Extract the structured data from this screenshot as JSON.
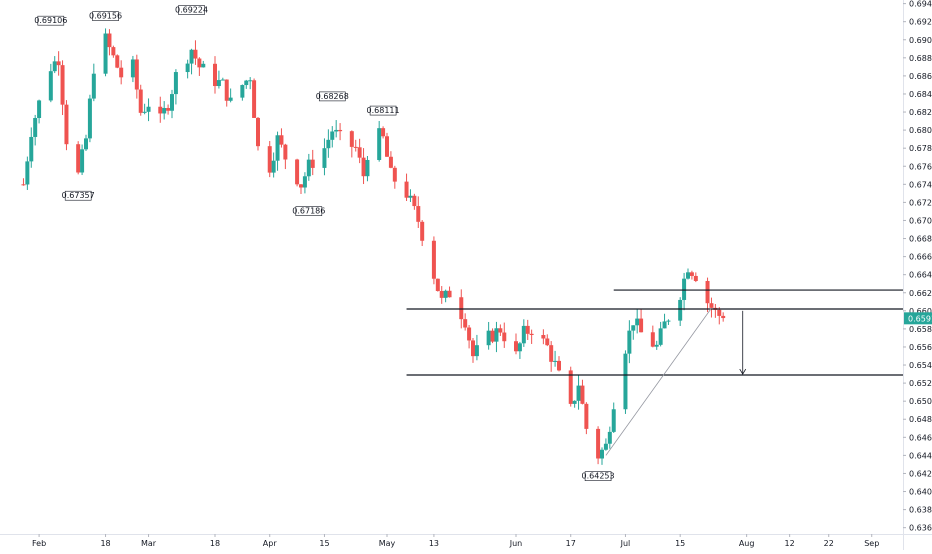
{
  "chart_data": {
    "type": "candlestick",
    "title": "",
    "xlabel": "",
    "ylabel": "",
    "ylim": [
      0.6353,
      0.6944
    ],
    "grid": false,
    "y_ticks": [
      "0.69400",
      "0.69200",
      "0.69000",
      "0.68800",
      "0.68600",
      "0.68400",
      "0.68200",
      "0.68000",
      "0.67800",
      "0.67600",
      "0.67400",
      "0.67200",
      "0.67000",
      "0.66800",
      "0.66600",
      "0.66400",
      "0.66200",
      "0.66000",
      "0.65800",
      "0.65600",
      "0.65400",
      "0.65200",
      "0.65000",
      "0.64800",
      "0.64600",
      "0.64400",
      "0.64200",
      "0.64000",
      "0.63800",
      "0.63600"
    ],
    "x_ticks": [
      {
        "label": "Feb",
        "date": "2019-02-01"
      },
      {
        "label": "18",
        "date": "2019-02-18"
      },
      {
        "label": "Mar",
        "date": "2019-03-01"
      },
      {
        "label": "18",
        "date": "2019-03-18"
      },
      {
        "label": "Apr",
        "date": "2019-04-01"
      },
      {
        "label": "15",
        "date": "2019-04-15"
      },
      {
        "label": "May",
        "date": "2019-05-01"
      },
      {
        "label": "13",
        "date": "2019-05-13"
      },
      {
        "label": "Jun",
        "date": "2019-06-03"
      },
      {
        "label": "17",
        "date": "2019-06-17"
      },
      {
        "label": "Jul",
        "date": "2019-07-01"
      },
      {
        "label": "15",
        "date": "2019-07-15"
      },
      {
        "label": "Aug",
        "date": "2019-08-01"
      },
      {
        "label": "12",
        "date": "2019-08-12"
      },
      {
        "label": "22",
        "date": "2019-08-22"
      },
      {
        "label": "Sep",
        "date": "2019-09-02"
      }
    ],
    "colors": {
      "up": "#26a69a",
      "down": "#ef5350",
      "level": "#131722",
      "price_tag": "#26a69a",
      "trend": "#9598a1"
    },
    "current_price": "0.65917",
    "candles_keypoints": [
      {
        "date": "2019-01-28",
        "value": 0.674
      },
      {
        "date": "2019-01-30",
        "value": 0.68
      },
      {
        "date": "2019-02-01",
        "value": 0.683
      },
      {
        "date": "2019-02-04",
        "value": 0.687
      },
      {
        "date": "2019-02-06",
        "value": 0.688
      },
      {
        "date": "2019-02-08",
        "value": 0.679
      },
      {
        "date": "2019-02-11",
        "value": 0.675
      },
      {
        "date": "2019-02-13",
        "value": 0.679
      },
      {
        "date": "2019-02-15",
        "value": 0.687
      },
      {
        "date": "2019-02-18",
        "value": 0.69
      },
      {
        "date": "2019-02-20",
        "value": 0.688
      },
      {
        "date": "2019-02-22",
        "value": 0.686
      },
      {
        "date": "2019-02-25",
        "value": 0.687
      },
      {
        "date": "2019-02-27",
        "value": 0.682
      },
      {
        "date": "2019-03-01",
        "value": 0.683
      },
      {
        "date": "2019-03-04",
        "value": 0.681
      },
      {
        "date": "2019-03-06",
        "value": 0.683
      },
      {
        "date": "2019-03-08",
        "value": 0.686
      },
      {
        "date": "2019-03-12",
        "value": 0.689
      },
      {
        "date": "2019-03-14",
        "value": 0.687
      },
      {
        "date": "2019-03-18",
        "value": 0.6855
      },
      {
        "date": "2019-03-20",
        "value": 0.685
      },
      {
        "date": "2019-03-22",
        "value": 0.683
      },
      {
        "date": "2019-03-25",
        "value": 0.685
      },
      {
        "date": "2019-03-27",
        "value": 0.686
      },
      {
        "date": "2019-03-29",
        "value": 0.678
      },
      {
        "date": "2019-04-01",
        "value": 0.676
      },
      {
        "date": "2019-04-03",
        "value": 0.679
      },
      {
        "date": "2019-04-05",
        "value": 0.677
      },
      {
        "date": "2019-04-09",
        "value": 0.674
      },
      {
        "date": "2019-04-11",
        "value": 0.676
      },
      {
        "date": "2019-04-15",
        "value": 0.678
      },
      {
        "date": "2019-04-17",
        "value": 0.68
      },
      {
        "date": "2019-04-19",
        "value": 0.679
      },
      {
        "date": "2019-04-23",
        "value": 0.678
      },
      {
        "date": "2019-04-25",
        "value": 0.675
      },
      {
        "date": "2019-04-27",
        "value": 0.68
      },
      {
        "date": "2019-04-30",
        "value": 0.679
      },
      {
        "date": "2019-05-02",
        "value": 0.675
      },
      {
        "date": "2019-05-06",
        "value": 0.673
      },
      {
        "date": "2019-05-09",
        "value": 0.67
      },
      {
        "date": "2019-05-13",
        "value": 0.664
      },
      {
        "date": "2019-05-15",
        "value": 0.661
      },
      {
        "date": "2019-05-17",
        "value": 0.662
      },
      {
        "date": "2019-05-21",
        "value": 0.659
      },
      {
        "date": "2019-05-23",
        "value": 0.655
      },
      {
        "date": "2019-05-27",
        "value": 0.657
      },
      {
        "date": "2019-05-30",
        "value": 0.658
      },
      {
        "date": "2019-06-03",
        "value": 0.655
      },
      {
        "date": "2019-06-05",
        "value": 0.6575
      },
      {
        "date": "2019-06-07",
        "value": 0.658
      },
      {
        "date": "2019-06-11",
        "value": 0.656
      },
      {
        "date": "2019-06-13",
        "value": 0.654
      },
      {
        "date": "2019-06-17",
        "value": 0.649
      },
      {
        "date": "2019-06-19",
        "value": 0.652
      },
      {
        "date": "2019-06-21",
        "value": 0.647
      },
      {
        "date": "2019-06-24",
        "value": 0.644
      },
      {
        "date": "2019-06-26",
        "value": 0.645
      },
      {
        "date": "2019-06-28",
        "value": 0.65
      },
      {
        "date": "2019-07-01",
        "value": 0.656
      },
      {
        "date": "2019-07-03",
        "value": 0.659
      },
      {
        "date": "2019-07-05",
        "value": 0.6575
      },
      {
        "date": "2019-07-09",
        "value": 0.656
      },
      {
        "date": "2019-07-11",
        "value": 0.6585
      },
      {
        "date": "2019-07-15",
        "value": 0.662
      },
      {
        "date": "2019-07-17",
        "value": 0.665
      },
      {
        "date": "2019-07-19",
        "value": 0.664
      },
      {
        "date": "2019-07-22",
        "value": 0.661
      },
      {
        "date": "2019-07-24",
        "value": 0.6598
      },
      {
        "date": "2019-07-26",
        "value": 0.6592
      }
    ],
    "annotations": [
      {
        "label": "0.69106",
        "date": "2019-02-04",
        "value": 0.69106
      },
      {
        "label": "0.69156",
        "date": "2019-02-18",
        "value": 0.69156
      },
      {
        "label": "0.69224",
        "date": "2019-03-12",
        "value": 0.69224
      },
      {
        "label": "0.67357",
        "date": "2019-02-11",
        "value": 0.67357
      },
      {
        "label": "0.68268",
        "date": "2019-04-17",
        "value": 0.68268
      },
      {
        "label": "0.68111",
        "date": "2019-04-30",
        "value": 0.68111
      },
      {
        "label": "0.67186",
        "date": "2019-04-11",
        "value": 0.67186
      },
      {
        "label": "0.64253",
        "date": "2019-06-24",
        "value": 0.64253
      }
    ],
    "levels": [
      {
        "value": 0.6623,
        "from": "2019-06-28",
        "to": "2019-09-10"
      },
      {
        "value": 0.6602,
        "from": "2019-05-06",
        "to": "2019-09-10"
      },
      {
        "value": 0.6529,
        "from": "2019-05-06",
        "to": "2019-09-10"
      }
    ]
  }
}
